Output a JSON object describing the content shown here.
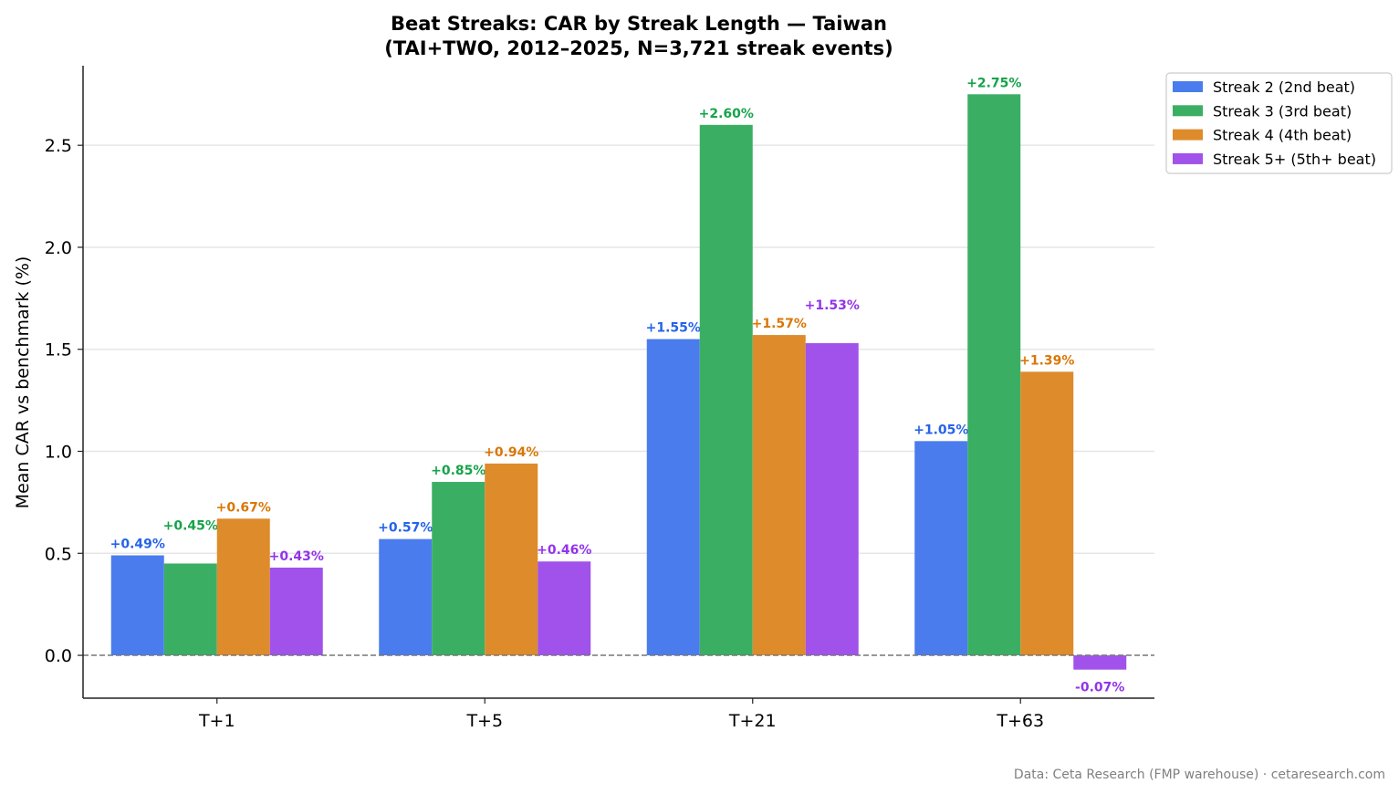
{
  "chart_data": {
    "type": "bar",
    "title": "Beat Streaks: CAR by Streak Length — Taiwan",
    "subtitle": "(TAI+TWO, 2012–2025, N=3,721 streak events)",
    "xlabel": "",
    "ylabel": "Mean CAR vs benchmark (%)",
    "ylim": [
      -0.21,
      2.89
    ],
    "yticks": [
      0.0,
      0.5,
      1.0,
      1.5,
      2.0,
      2.5
    ],
    "ytick_labels": [
      "0.0",
      "0.5",
      "1.0",
      "1.5",
      "2.0",
      "2.5"
    ],
    "grid": "horizontal",
    "zero_line": "dashed",
    "legend_position": "top-right",
    "categories": [
      "T+1",
      "T+5",
      "T+21",
      "T+63"
    ],
    "series": [
      {
        "name": "Streak 2 (2nd beat)",
        "values": [
          0.49,
          0.57,
          1.55,
          1.05
        ],
        "labels": [
          "+0.49%",
          "+0.57%",
          "+1.55%",
          "+1.05%"
        ],
        "color": "#4a7cee",
        "label_color": "#2563eb"
      },
      {
        "name": "Streak 3 (3rd beat)",
        "values": [
          0.45,
          0.85,
          2.6,
          2.75
        ],
        "labels": [
          "+0.45%",
          "+0.85%",
          "+2.60%",
          "+2.75%"
        ],
        "color": "#3aaf64",
        "label_color": "#16a34a"
      },
      {
        "name": "Streak 4 (4th beat)",
        "values": [
          0.67,
          0.94,
          1.57,
          1.39
        ],
        "labels": [
          "+0.67%",
          "+0.94%",
          "+1.57%",
          "+1.39%"
        ],
        "color": "#de8b2b",
        "label_color": "#d97706"
      },
      {
        "name": "Streak 5+ (5th+ beat)",
        "values": [
          0.43,
          0.46,
          1.53,
          -0.07
        ],
        "labels": [
          "+0.43%",
          "+0.46%",
          "+1.53%",
          "-0.07%"
        ],
        "color": "#a052ea",
        "label_color": "#9333ea"
      }
    ]
  },
  "footer": "Data: Ceta Research (FMP warehouse) · cetaresearch.com"
}
